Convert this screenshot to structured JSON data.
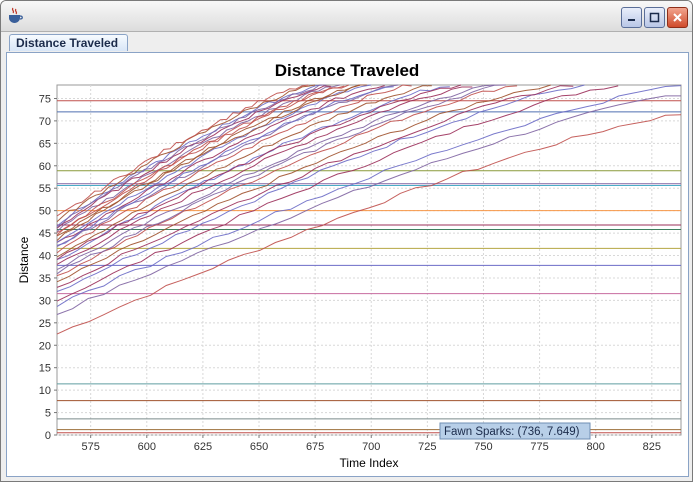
{
  "window": {
    "icon": "java-cup-icon",
    "controls": [
      "minimize-icon",
      "maximize-icon",
      "close-icon"
    ]
  },
  "tabs": [
    {
      "label": "Distance Traveled"
    }
  ],
  "chart_data": {
    "type": "line",
    "title": "Distance Traveled",
    "xlabel": "Time Index",
    "ylabel": "Distance",
    "xlim": [
      560,
      838
    ],
    "ylim": [
      0,
      78
    ],
    "xticks": [
      575,
      600,
      625,
      650,
      675,
      700,
      725,
      750,
      775,
      800,
      825
    ],
    "yticks": [
      0,
      5,
      10,
      15,
      20,
      25,
      30,
      35,
      40,
      45,
      50,
      55,
      60,
      65,
      70,
      75
    ],
    "grid": true,
    "legend": "none",
    "tooltip": "Fawn Sparks: (736, 7.649)",
    "series_note": "Approximately 80 racer series; values estimated from plot",
    "flat_series": [
      {
        "y": 74.5
      },
      {
        "y": 72.0
      },
      {
        "y": 58.9
      },
      {
        "y": 56.0
      },
      {
        "y": 55.6
      },
      {
        "y": 50.0
      },
      {
        "y": 46.8
      },
      {
        "y": 45.8
      },
      {
        "y": 41.6
      },
      {
        "y": 37.8
      },
      {
        "y": 31.5
      },
      {
        "y": 11.4
      },
      {
        "y": 7.649
      },
      {
        "y": 3.6
      },
      {
        "y": 1.2
      },
      {
        "y": 0.5
      }
    ],
    "rising_series": [
      {
        "x0": 560,
        "y0": 22.5,
        "x1": 838,
        "y1": 71.5
      },
      {
        "x0": 560,
        "y0": 27.0,
        "x1": 838,
        "y1": 76.0
      },
      {
        "x0": 560,
        "y0": 30.0,
        "x1": 810,
        "y1": 78.0
      },
      {
        "x0": 560,
        "y0": 32.0,
        "x1": 795,
        "y1": 78.0
      },
      {
        "x0": 560,
        "y0": 34.0,
        "x1": 780,
        "y1": 78.0
      },
      {
        "x0": 560,
        "y0": 35.5,
        "x1": 765,
        "y1": 78.0
      },
      {
        "x0": 560,
        "y0": 37.0,
        "x1": 755,
        "y1": 78.0
      },
      {
        "x0": 560,
        "y0": 38.0,
        "x1": 745,
        "y1": 78.0
      },
      {
        "x0": 560,
        "y0": 39.0,
        "x1": 735,
        "y1": 78.0
      },
      {
        "x0": 560,
        "y0": 40.0,
        "x1": 727,
        "y1": 78.0
      },
      {
        "x0": 560,
        "y0": 41.0,
        "x1": 718,
        "y1": 78.0
      },
      {
        "x0": 560,
        "y0": 41.8,
        "x1": 712,
        "y1": 78.0
      },
      {
        "x0": 560,
        "y0": 42.5,
        "x1": 706,
        "y1": 78.0
      },
      {
        "x0": 560,
        "y0": 43.2,
        "x1": 700,
        "y1": 78.0
      },
      {
        "x0": 560,
        "y0": 44.0,
        "x1": 695,
        "y1": 78.0
      },
      {
        "x0": 560,
        "y0": 44.8,
        "x1": 690,
        "y1": 78.0
      },
      {
        "x0": 560,
        "y0": 45.5,
        "x1": 686,
        "y1": 78.0
      },
      {
        "x0": 560,
        "y0": 46.3,
        "x1": 682,
        "y1": 78.0
      },
      {
        "x0": 560,
        "y0": 47.0,
        "x1": 678,
        "y1": 78.0
      },
      {
        "x0": 560,
        "y0": 47.8,
        "x1": 675,
        "y1": 78.0
      },
      {
        "x0": 560,
        "y0": 48.5,
        "x1": 672,
        "y1": 78.0
      },
      {
        "x0": 560,
        "y0": 36.0,
        "x1": 760,
        "y1": 78.0
      },
      {
        "x0": 560,
        "y0": 39.5,
        "x1": 740,
        "y1": 78.0
      },
      {
        "x0": 560,
        "y0": 42.0,
        "x1": 710,
        "y1": 78.0
      },
      {
        "x0": 560,
        "y0": 43.6,
        "x1": 698,
        "y1": 78.0
      },
      {
        "x0": 560,
        "y0": 45.0,
        "x1": 688,
        "y1": 78.0
      },
      {
        "x0": 560,
        "y0": 46.6,
        "x1": 680,
        "y1": 78.0
      },
      {
        "x0": 560,
        "y0": 33.0,
        "x1": 790,
        "y1": 78.0
      },
      {
        "x0": 560,
        "y0": 29.0,
        "x1": 838,
        "y1": 78.0
      }
    ]
  }
}
